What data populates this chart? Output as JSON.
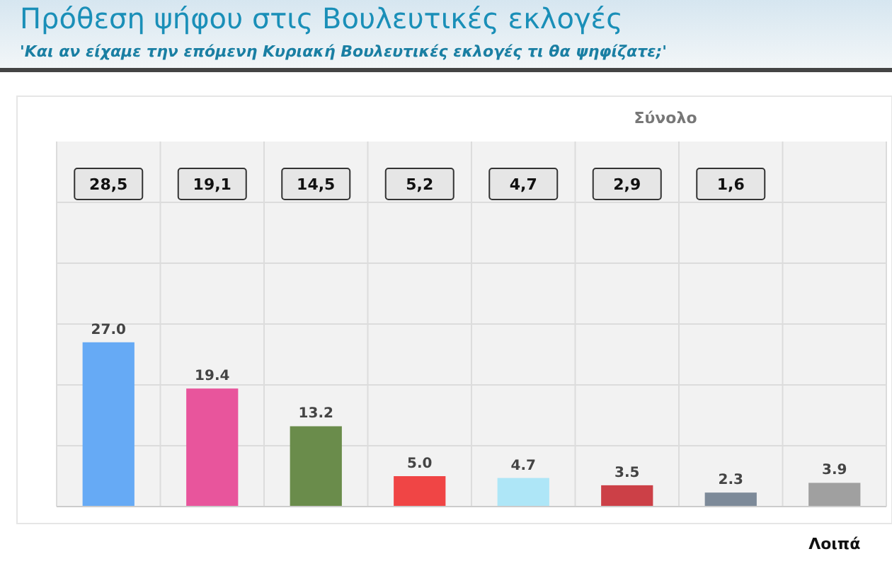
{
  "chart_data": {
    "type": "bar",
    "title": "Πρόθεση ψήφου στις Βουλευτικές εκλογές",
    "subtitle": "'Και αν είχαμε την επόμενη Κυριακή Βουλευτικές εκλογές τι θα ψηφίζατε;'",
    "xlabel": "Σύνολο",
    "categories": [
      null,
      null,
      null,
      null,
      null,
      null,
      null,
      "Λοιπά"
    ],
    "values": [
      27.0,
      19.4,
      13.2,
      5.0,
      4.7,
      3.5,
      2.3,
      3.9
    ],
    "colors": [
      "#66aaf5",
      "#e8559c",
      "#6a8c4b",
      "#f04545",
      "#aee6f7",
      "#cc4047",
      "#7d8a99",
      "#a0a0a0"
    ],
    "value_labels": [
      "27.0",
      "19.4",
      "13.2",
      "5.0",
      "4.7",
      "3.5",
      "2.3",
      "3.9"
    ],
    "annotations": [
      "28,5",
      "19,1",
      "14,5",
      "5,2",
      "4,7",
      "2,9",
      "1,6"
    ],
    "ylim": [
      0,
      60
    ],
    "yticks": [
      {
        "value": 10,
        "label": null
      },
      {
        "value": 20,
        "label": null
      },
      {
        "value": 30,
        "label": null
      },
      {
        "value": 40,
        "label": null
      },
      {
        "value": 50,
        "label": null
      }
    ],
    "grid": true,
    "tick_labels": "x"
  }
}
